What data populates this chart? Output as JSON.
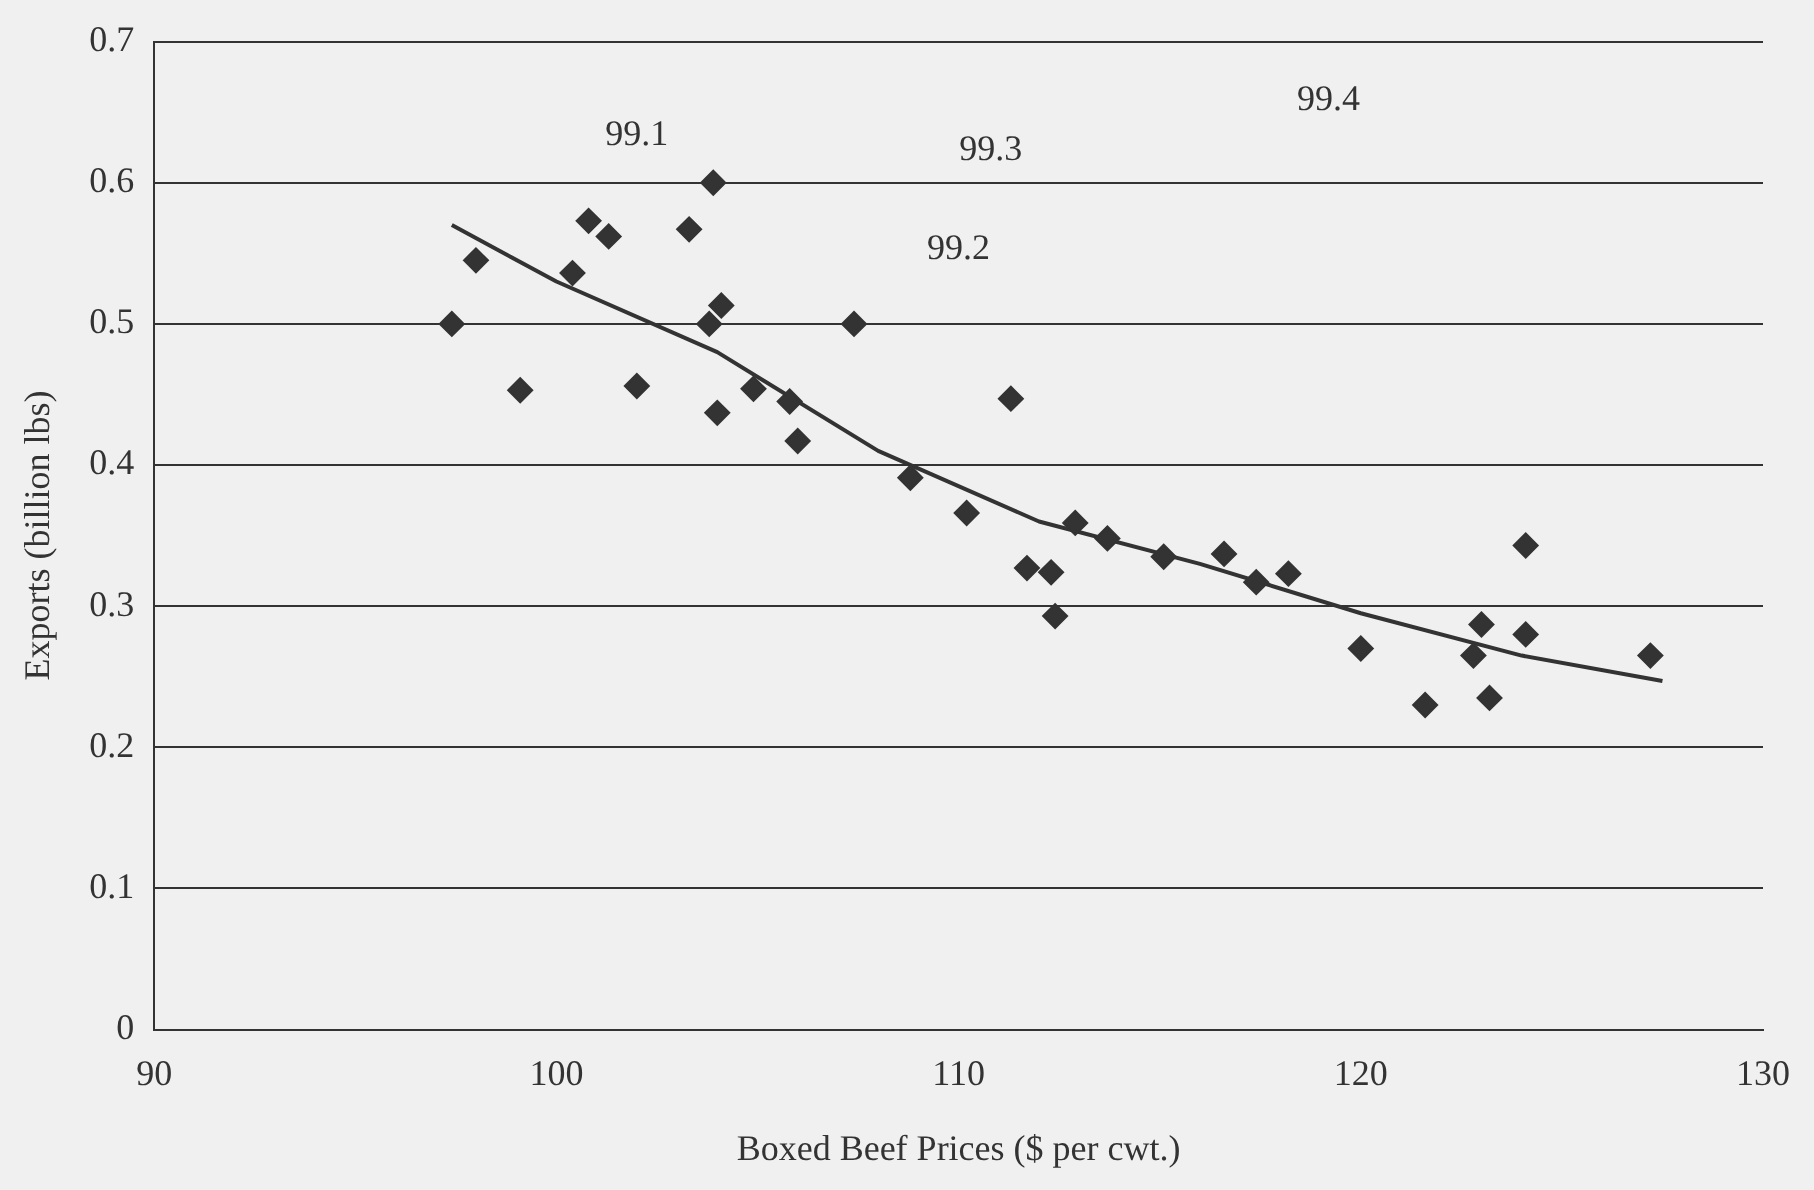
{
  "chart_data": {
    "type": "scatter",
    "xlabel": "Boxed Beef Prices ($ per cwt.)",
    "ylabel": "Exports (billion lbs)",
    "xlim": [
      90,
      130
    ],
    "xticks": [
      90,
      100,
      110,
      120,
      130
    ],
    "ylim": [
      0,
      0.7
    ],
    "yticks": [
      0,
      0.1,
      0.2,
      0.3,
      0.4,
      0.5,
      0.6,
      0.7
    ],
    "grid": "y",
    "legend": false,
    "series": [
      {
        "color": "#333333",
        "marker": "diamond",
        "x": [
          97.4,
          98.0,
          99.1,
          100.4,
          100.8,
          101.3,
          102.0,
          103.3,
          103.9,
          103.8,
          104.1,
          104.0,
          104.9,
          105.8,
          106.0,
          107.4,
          108.8,
          110.2,
          111.3,
          111.7,
          112.3,
          112.4,
          112.9,
          113.7,
          115.1,
          116.6,
          117.4,
          118.2,
          120.0,
          121.6,
          122.8,
          123.0,
          123.2,
          124.1,
          124.1,
          127.2
        ],
        "values": [
          0.5,
          0.545,
          0.453,
          0.536,
          0.573,
          0.562,
          0.456,
          0.567,
          0.6,
          0.5,
          0.513,
          0.437,
          0.454,
          0.445,
          0.417,
          0.5,
          0.391,
          0.366,
          0.447,
          0.327,
          0.324,
          0.293,
          0.359,
          0.348,
          0.335,
          0.337,
          0.317,
          0.323,
          0.27,
          0.23,
          0.265,
          0.287,
          0.235,
          0.343,
          0.28,
          0.265
        ]
      },
      {
        "type": "line",
        "color": "#333333",
        "marker": "none",
        "x": [
          97.4,
          100,
          104,
          108,
          112,
          116,
          120,
          124,
          127.5
        ],
        "values": [
          0.57,
          0.53,
          0.48,
          0.41,
          0.36,
          0.33,
          0.295,
          0.265,
          0.247
        ]
      }
    ],
    "annotations": [
      "99.1",
      "99.2",
      "99.3",
      "99.4"
    ]
  }
}
